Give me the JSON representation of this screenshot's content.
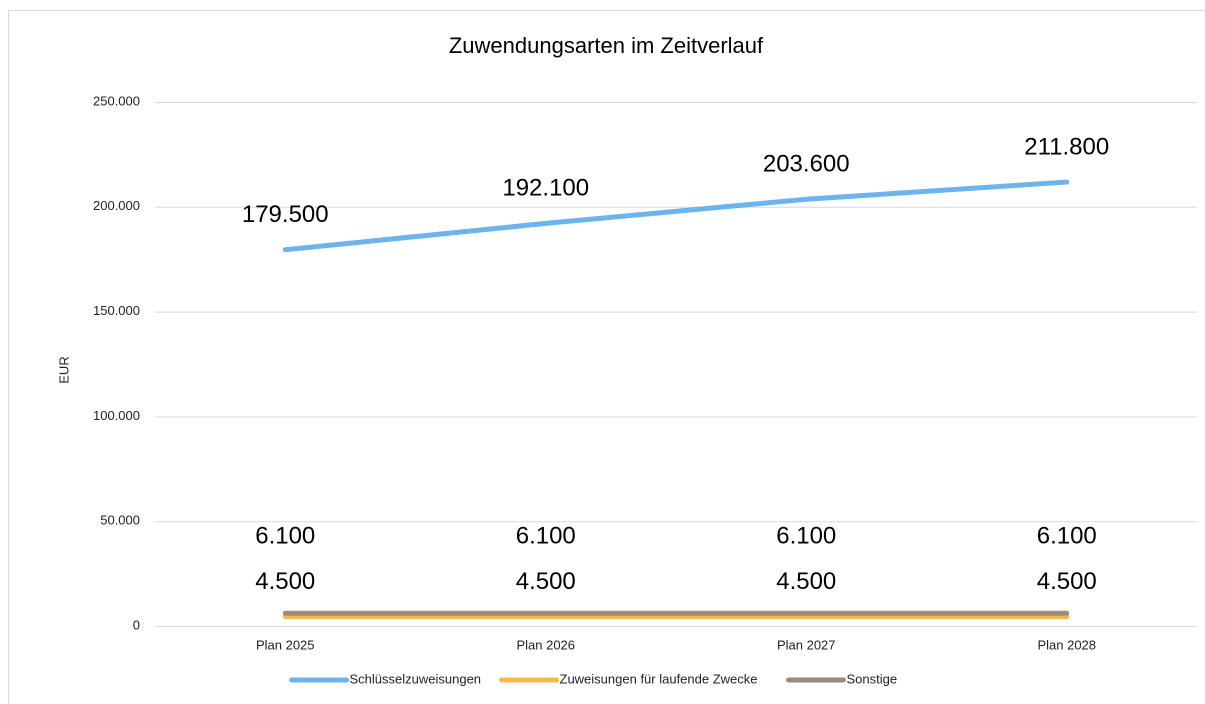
{
  "chart_data": {
    "type": "line",
    "title": "Zuwendungsarten im Zeitverlauf",
    "y_label": "EUR",
    "categories": [
      "Plan 2025",
      "Plan 2026",
      "Plan 2027",
      "Plan 2028"
    ],
    "series": [
      {
        "name": "Schlüsselzuweisungen",
        "color": "#6cb4ee",
        "values": [
          179500,
          192100,
          203600,
          211800
        ],
        "value_labels": [
          "179.500",
          "192.100",
          "203.600",
          "211.800"
        ]
      },
      {
        "name": "Zuweisungen für laufende Zwecke",
        "color": "#f6b94a",
        "values": [
          4500,
          4500,
          4500,
          4500
        ],
        "value_labels": [
          "4.500",
          "4.500",
          "4.500",
          "4.500"
        ]
      },
      {
        "name": "Sonstige",
        "color": "#a08a7e",
        "values": [
          6100,
          6100,
          6100,
          6100
        ],
        "value_labels": [
          "6.100",
          "6.100",
          "6.100",
          "6.100"
        ]
      }
    ],
    "ylim": [
      0,
      250000
    ],
    "yticks": [
      0,
      {
        "value": 50000,
        "label": "50.000"
      },
      {
        "value": 100000,
        "label": "100.000"
      },
      {
        "value": 150000,
        "label": "150.000"
      },
      {
        "value": 200000,
        "label": "200.000"
      },
      {
        "value": 250000,
        "label": "250.000"
      }
    ],
    "grid": true,
    "legend": "bottom"
  }
}
